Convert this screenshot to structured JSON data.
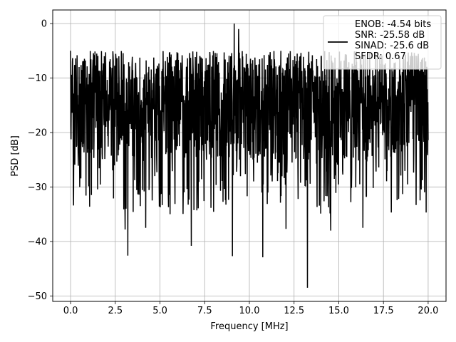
{
  "chart_data": {
    "type": "line",
    "title": "",
    "xlabel": "Frequency [MHz]",
    "ylabel": "PSD [dB]",
    "xlim": [
      -1.0,
      21.0
    ],
    "ylim": [
      -51.0,
      2.5
    ],
    "xticks": [
      0.0,
      2.5,
      5.0,
      7.5,
      10.0,
      12.5,
      15.0,
      17.5,
      20.0
    ],
    "xtick_labels": [
      "0.0",
      "2.5",
      "5.0",
      "7.5",
      "10.0",
      "12.5",
      "15.0",
      "17.5",
      "20.0"
    ],
    "yticks": [
      0,
      -10,
      -20,
      -30,
      -40,
      -50
    ],
    "ytick_labels": [
      "0",
      "−10",
      "−20",
      "−30",
      "−40",
      "−50"
    ],
    "grid": true,
    "legend_position": "top-right",
    "legend_lines": [
      "ENOB: -4.54 bits",
      "SNR: -25.58 dB",
      "SINAD: -25.6 dB",
      "SFDR: 0.67"
    ],
    "line_color": "#000000",
    "series": [
      {
        "noise_floor_db": -20,
        "x_start": 0.0,
        "x_end": 20.0,
        "peaks": [
          [
            0.0,
            -5
          ],
          [
            9.15,
            0.0
          ],
          [
            9.4,
            -1.0
          ],
          [
            13.25,
            -48.5
          ],
          [
            9.05,
            -42.7
          ],
          [
            10.75,
            -42.9
          ],
          [
            3.2,
            -42.6
          ],
          [
            6.75,
            -40.8
          ],
          [
            3.05,
            -37.8
          ],
          [
            14.55,
            -38.0
          ],
          [
            12.05,
            -37.7
          ],
          [
            16.35,
            -37.5
          ],
          [
            4.2,
            -37.5
          ]
        ]
      }
    ]
  }
}
